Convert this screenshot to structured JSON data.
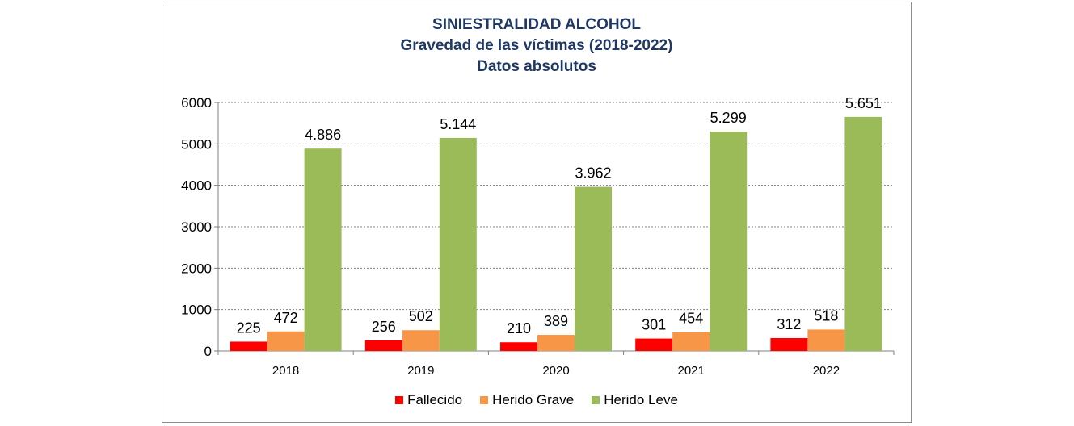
{
  "chart_data": {
    "type": "bar",
    "title": "SINIESTRALIDAD ALCOHOL",
    "subtitle": "Gravedad de las víctimas (2018-2022)",
    "subtitle2": "Datos absolutos",
    "categories": [
      "2018",
      "2019",
      "2020",
      "2021",
      "2022"
    ],
    "series": [
      {
        "name": "Fallecido",
        "color": "#ff0000",
        "values": [
          225,
          256,
          210,
          301,
          312
        ],
        "labels": [
          "225",
          "256",
          "210",
          "301",
          "312"
        ]
      },
      {
        "name": "Herido Grave",
        "color": "#f79646",
        "values": [
          472,
          502,
          389,
          454,
          518
        ],
        "labels": [
          "472",
          "502",
          "389",
          "454",
          "518"
        ]
      },
      {
        "name": "Herido Leve",
        "color": "#9bbb59",
        "values": [
          4886,
          5144,
          3962,
          5299,
          5651
        ],
        "labels": [
          "4.886",
          "5.144",
          "3.962",
          "5.299",
          "5.651"
        ]
      }
    ],
    "ylim": [
      0,
      6000
    ],
    "yticks": [
      "0",
      "1000",
      "2000",
      "3000",
      "4000",
      "5000",
      "6000"
    ],
    "grid": "dotted horizontal",
    "legend": "bottom"
  }
}
